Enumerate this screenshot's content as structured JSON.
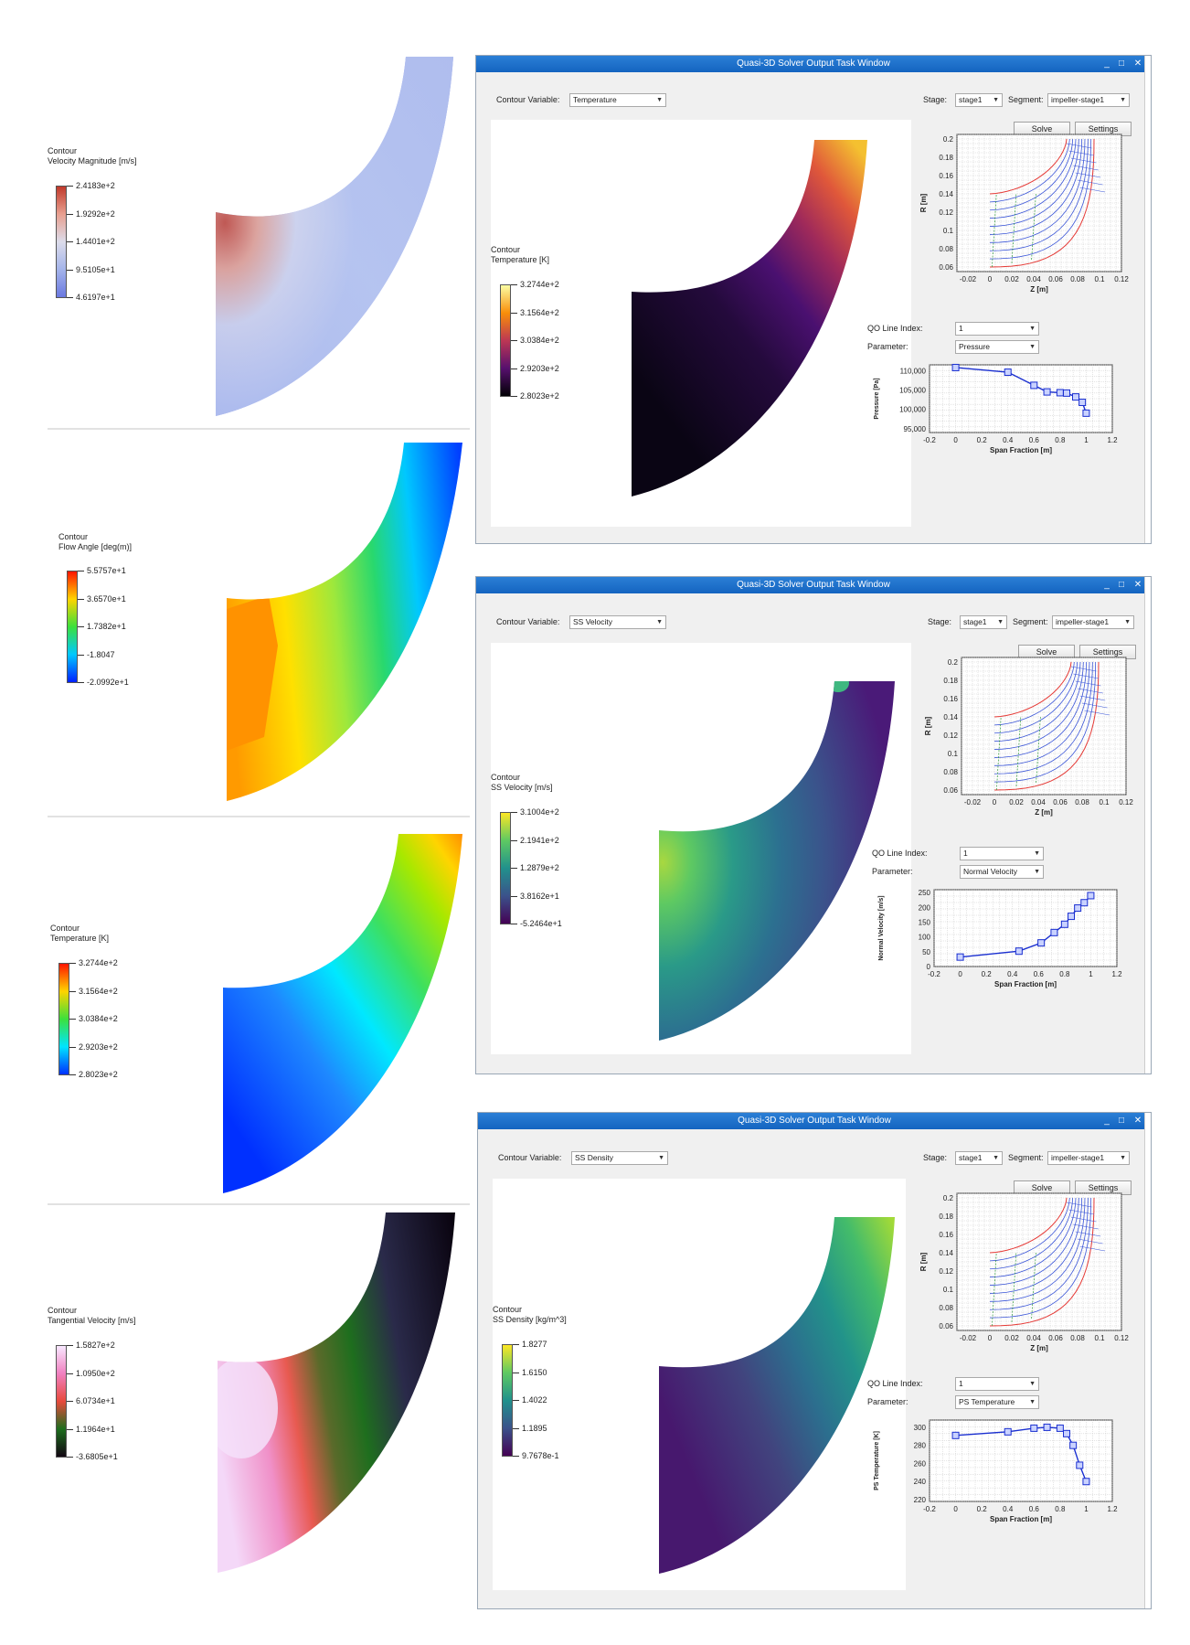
{
  "left_panels": [
    {
      "legend_label": "Contour",
      "variable": "Velocity Magnitude [m/s]",
      "ticks": [
        "2.4183e+2",
        "1.9292e+2",
        "1.4401e+2",
        "9.5105e+1",
        "4.6197e+1"
      ],
      "colormap": [
        "#c0392b",
        "#e8a090",
        "#dcdcea",
        "#a4b4ea",
        "#6a78e0"
      ]
    },
    {
      "legend_label": "Contour",
      "variable": "Flow Angle [deg(m)]",
      "ticks": [
        "5.5757e+1",
        "3.6570e+1",
        "1.7382e+1",
        "-1.8047",
        "-2.0992e+1"
      ],
      "colormap": [
        "#ff1500",
        "#ffd400",
        "#3ce03c",
        "#00c8ff",
        "#0020ff"
      ]
    },
    {
      "legend_label": "Contour",
      "variable": "Temperature [K]",
      "ticks": [
        "3.2744e+2",
        "3.1564e+2",
        "3.0384e+2",
        "2.9203e+2",
        "2.8023e+2"
      ],
      "colormap": [
        "#ff1500",
        "#ffd400",
        "#3ce03c",
        "#00e4ff",
        "#0030ff"
      ]
    },
    {
      "legend_label": "Contour",
      "variable": "Tangential Velocity [m/s]",
      "ticks": [
        "1.5827e+2",
        "1.0950e+2",
        "6.0734e+1",
        "1.1964e+1",
        "-3.6805e+1"
      ],
      "colormap": [
        "#f8e8ff",
        "#f080c0",
        "#e84a3c",
        "#1e6e1e",
        "#120612"
      ]
    }
  ],
  "windows": [
    {
      "title": "Quasi-3D Solver Output Task Window",
      "contour_variable_label": "Contour Variable:",
      "contour_variable": "Temperature",
      "stage_label": "Stage:",
      "stage": "stage1",
      "segment_label": "Segment:",
      "segment": "impeller-stage1",
      "solve_label": "Solve",
      "settings_label": "Settings",
      "legend_label": "Contour",
      "legend_variable": "Temperature [K]",
      "legend_ticks": [
        "3.2744e+2",
        "3.1564e+2",
        "3.0384e+2",
        "2.9203e+2",
        "2.8023e+2"
      ],
      "colormap": [
        "#fcfea4",
        "#f98e09",
        "#bc3754",
        "#57106e",
        "#000004"
      ],
      "qo_label": "QO Line Index:",
      "qo_value": "1",
      "param_label": "Parameter:",
      "param_value": "Pressure",
      "chart_data": [
        {
          "type": "line",
          "xlabel": "Z [m]",
          "ylabel": "R [m]",
          "xlim": [
            -0.03,
            0.12
          ],
          "ylim": [
            0.055,
            0.205
          ],
          "xticks": [
            "-0.02",
            "0",
            "0.02",
            "0.04",
            "0.06",
            "0.08",
            "0.1",
            "0.12"
          ],
          "yticks": [
            "0.2",
            "0.18",
            "0.16",
            "0.14",
            "0.12",
            "0.1",
            "0.08",
            "0.06"
          ],
          "series": [
            {
              "values": "meridional streamlines and QO lines"
            }
          ]
        },
        {
          "type": "line",
          "xlabel": "Span Fraction [m]",
          "ylabel": "Pressure [Pa]",
          "xlim": [
            -0.2,
            1.2
          ],
          "ylim": [
            94000,
            111500
          ],
          "xticks": [
            "-0.2",
            "0",
            "0.2",
            "0.4",
            "0.6",
            "0.8",
            "1",
            "1.2"
          ],
          "yticks": [
            "110,000",
            "105,000",
            "100,000",
            "95,000"
          ],
          "x": [
            0,
            0.4,
            0.6,
            0.7,
            0.8,
            0.85,
            0.92,
            0.97,
            1.0
          ],
          "y": [
            110800,
            109600,
            106200,
            104500,
            104300,
            104200,
            103200,
            101800,
            99000
          ]
        }
      ]
    },
    {
      "title": "Quasi-3D Solver Output Task Window",
      "contour_variable_label": "Contour Variable:",
      "contour_variable": "SS Velocity",
      "stage_label": "Stage:",
      "stage": "stage1",
      "segment_label": "Segment:",
      "segment": "impeller-stage1",
      "solve_label": "Solve",
      "settings_label": "Settings",
      "legend_label": "Contour",
      "legend_variable": "SS Velocity [m/s]",
      "legend_ticks": [
        "3.1004e+2",
        "2.1941e+2",
        "1.2879e+2",
        "3.8162e+1",
        "-5.2464e+1"
      ],
      "colormap": [
        "#fde725",
        "#5ec962",
        "#21918c",
        "#3b528b",
        "#440154"
      ],
      "qo_label": "QO Line Index:",
      "qo_value": "1",
      "param_label": "Parameter:",
      "param_value": "Normal Velocity",
      "chart_data": [
        {
          "type": "line",
          "xlabel": "Z [m]",
          "ylabel": "R [m]",
          "xlim": [
            -0.03,
            0.12
          ],
          "ylim": [
            0.055,
            0.205
          ],
          "xticks": [
            "-0.02",
            "0",
            "0.02",
            "0.04",
            "0.06",
            "0.08",
            "0.1",
            "0.12"
          ],
          "yticks": [
            "0.2",
            "0.18",
            "0.16",
            "0.14",
            "0.12",
            "0.1",
            "0.08",
            "0.06"
          ],
          "series": [
            {
              "values": "meridional streamlines and QO lines"
            }
          ]
        },
        {
          "type": "line",
          "xlabel": "Span Fraction [m]",
          "ylabel": "Normal Velocity [m/s]",
          "xlim": [
            -0.2,
            1.2
          ],
          "ylim": [
            0,
            260
          ],
          "xticks": [
            "-0.2",
            "0",
            "0.2",
            "0.4",
            "0.6",
            "0.8",
            "1",
            "1.2"
          ],
          "yticks": [
            "250",
            "200",
            "150",
            "100",
            "50",
            "0"
          ],
          "x": [
            0,
            0.45,
            0.62,
            0.72,
            0.8,
            0.85,
            0.9,
            0.95,
            1.0
          ],
          "y": [
            32,
            52,
            80,
            115,
            143,
            170,
            198,
            216,
            240
          ]
        }
      ]
    },
    {
      "title": "Quasi-3D Solver Output Task Window",
      "contour_variable_label": "Contour Variable:",
      "contour_variable": "SS Density",
      "stage_label": "Stage:",
      "stage": "stage1",
      "segment_label": "Segment:",
      "segment": "impeller-stage1",
      "solve_label": "Solve",
      "settings_label": "Settings",
      "legend_label": "Contour",
      "legend_variable": "SS Density [kg/m^3]",
      "legend_ticks": [
        "1.8277",
        "1.6150",
        "1.4022",
        "1.1895",
        "9.7678e-1"
      ],
      "colormap": [
        "#fde725",
        "#5ec962",
        "#21918c",
        "#3b528b",
        "#440154"
      ],
      "qo_label": "QO Line Index:",
      "qo_value": "1",
      "param_label": "Parameter:",
      "param_value": "PS Temperature",
      "chart_data": [
        {
          "type": "line",
          "xlabel": "Z [m]",
          "ylabel": "R [m]",
          "xlim": [
            -0.03,
            0.12
          ],
          "ylim": [
            0.055,
            0.205
          ],
          "xticks": [
            "-0.02",
            "0",
            "0.02",
            "0.04",
            "0.06",
            "0.08",
            "0.1",
            "0.12"
          ],
          "yticks": [
            "0.2",
            "0.18",
            "0.16",
            "0.14",
            "0.12",
            "0.1",
            "0.08",
            "0.06"
          ],
          "series": [
            {
              "values": "meridional streamlines and QO lines"
            }
          ]
        },
        {
          "type": "line",
          "xlabel": "Span Fraction [m]",
          "ylabel": "PS Temperature [K]",
          "xlim": [
            -0.2,
            1.2
          ],
          "ylim": [
            218,
            308
          ],
          "xticks": [
            "-0.2",
            "0",
            "0.2",
            "0.4",
            "0.6",
            "0.8",
            "1",
            "1.2"
          ],
          "yticks": [
            "300",
            "280",
            "260",
            "240",
            "220"
          ],
          "x": [
            0,
            0.4,
            0.6,
            0.7,
            0.8,
            0.85,
            0.9,
            0.95,
            1.0
          ],
          "y": [
            291,
            295,
            299,
            300,
            299,
            293,
            280,
            258,
            240
          ]
        }
      ]
    }
  ]
}
